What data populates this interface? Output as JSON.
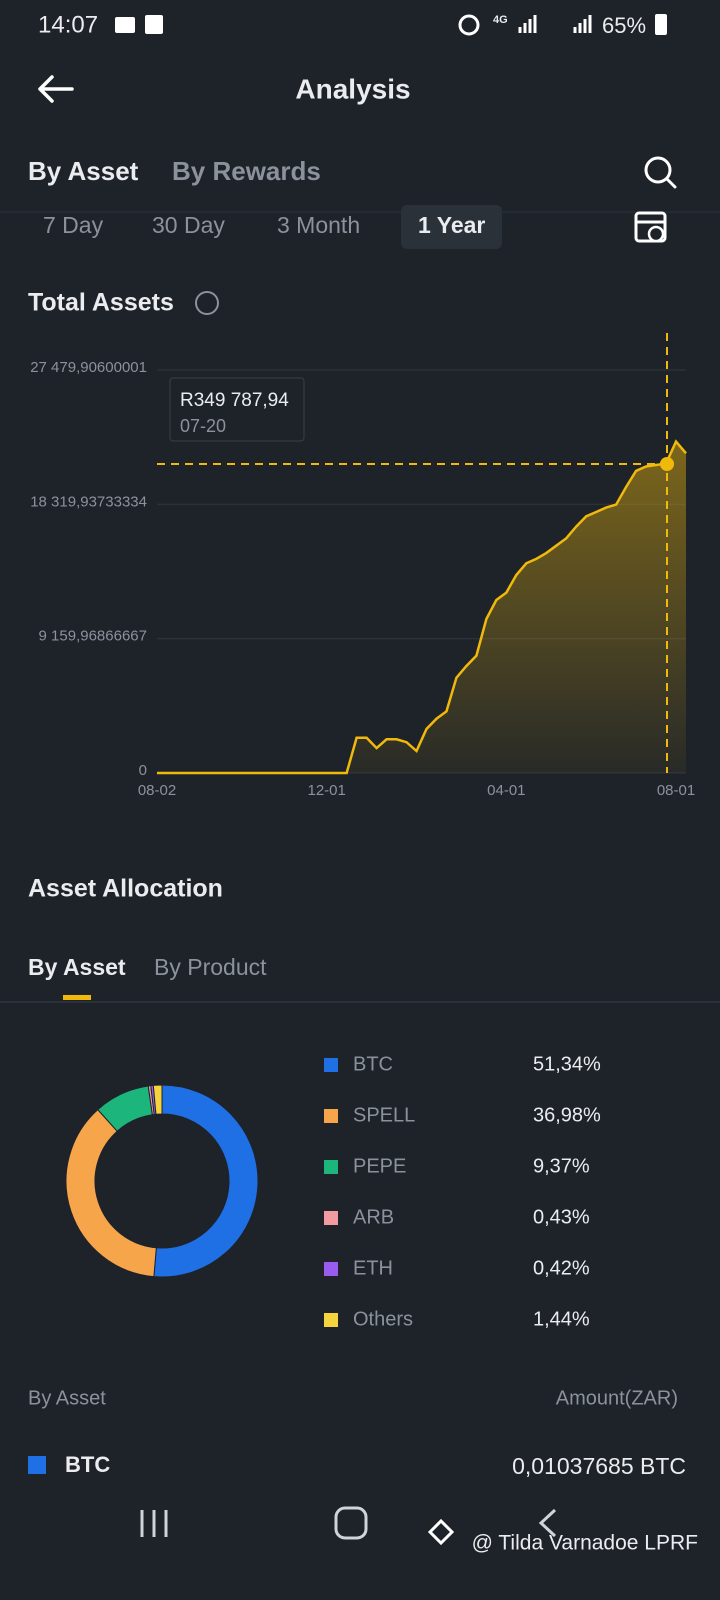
{
  "status_bar": {
    "time": "14:07",
    "network": "4G",
    "battery": "65%"
  },
  "header": {
    "title": "Analysis"
  },
  "tabs": [
    "By Asset",
    "By Rewards"
  ],
  "periods": [
    "7 Day",
    "30 Day",
    "3 Month",
    "1 Year"
  ],
  "chart_data": [
    {
      "type": "area",
      "title": "Total Assets",
      "color": "#f0b90b",
      "grid": true,
      "categories": [
        "08-02",
        null,
        null,
        null,
        null,
        null,
        null,
        null,
        null,
        null,
        null,
        null,
        null,
        null,
        null,
        null,
        null,
        "12-01",
        null,
        null,
        null,
        null,
        null,
        null,
        null,
        null,
        null,
        null,
        null,
        null,
        null,
        null,
        null,
        null,
        null,
        "04-01",
        null,
        null,
        null,
        null,
        null,
        null,
        null,
        null,
        null,
        null,
        null,
        null,
        null,
        null,
        null,
        null,
        "08-01",
        null
      ],
      "values": [
        0,
        0,
        0,
        0,
        0,
        0,
        0,
        0,
        0,
        0,
        0,
        0,
        0,
        0,
        0,
        0,
        0,
        0,
        0,
        0,
        2400,
        2400,
        1700,
        2300,
        2300,
        2100,
        1500,
        3000,
        3700,
        4200,
        6500,
        7300,
        8000,
        10500,
        11800,
        12300,
        13500,
        14300,
        14600,
        15000,
        15500,
        16000,
        16800,
        17500,
        17800,
        18100,
        18300,
        19500,
        20600,
        20900,
        21000,
        21100,
        22600,
        21800
      ],
      "ylim": [
        0,
        27479.90600001
      ],
      "yticks": [
        0,
        {
          "value": 9159.96866667,
          "label": "9 159,96866667"
        },
        {
          "value": 18319.93733334,
          "label": "18 319,93733334"
        },
        {
          "value": 27479.90600001,
          "label": "27 479,90600001"
        }
      ],
      "tooltip": {
        "value": "R349 787,94",
        "date": "07-20"
      }
    },
    {
      "type": "pie",
      "title": "Asset Allocation",
      "categories": [
        "BTC",
        "SPELL",
        "PEPE",
        "ARB",
        "ETH",
        "Others"
      ],
      "values": [
        51.34,
        36.98,
        9.37,
        0.43,
        0.42,
        1.44
      ],
      "value_labels": [
        "51,34%",
        "36,98%",
        "9,37%",
        "0,43%",
        "0,42%",
        "1,44%"
      ],
      "colors": [
        "#1f6fe5",
        "#f7a54b",
        "#1cb57b",
        "#f29ba0",
        "#9a5cf0",
        "#f5d43d"
      ],
      "tabs": [
        "By Asset",
        "By Product"
      ]
    }
  ],
  "table": {
    "header": [
      "By Asset",
      "Amount(ZAR)"
    ],
    "rows": [
      [
        "BTC",
        "0,01037685 BTC"
      ]
    ]
  },
  "watermark": "@ Tilda Varnadoe LPRF"
}
